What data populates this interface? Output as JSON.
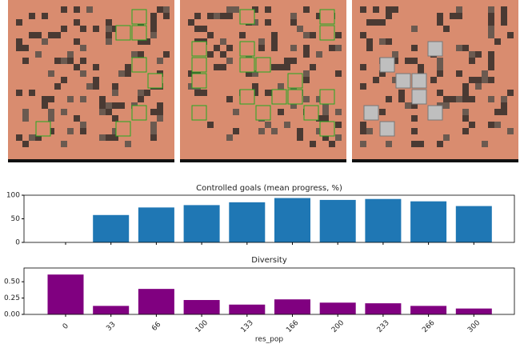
{
  "chart_data": [
    {
      "type": "bar",
      "title": "Controlled goals (mean progress, %)",
      "categories": [
        null,
        null,
        null,
        null,
        null,
        null,
        null,
        null,
        null,
        null
      ],
      "values": [
        0,
        58,
        74,
        79,
        85,
        94,
        90,
        92,
        87,
        77
      ],
      "color": "#1f77b4",
      "ylim": [
        0,
        100
      ],
      "yticks": [
        0,
        50,
        100
      ]
    },
    {
      "type": "bar",
      "title": "Diversity",
      "x_label": "res_pop",
      "categories": [
        "0",
        "33",
        "66",
        "100",
        "133",
        "166",
        "200",
        "233",
        "266",
        "300"
      ],
      "values": [
        0.61,
        0.13,
        0.39,
        0.22,
        0.15,
        0.23,
        0.18,
        0.17,
        0.13,
        0.09
      ],
      "color": "#800080",
      "ylim": [
        0,
        0.71
      ],
      "yticks": [
        {
          "value": 0,
          "label": "0.00"
        },
        {
          "value": 0.25,
          "label": "0.25"
        },
        {
          "value": 0.5,
          "label": "0.50"
        }
      ]
    }
  ]
}
